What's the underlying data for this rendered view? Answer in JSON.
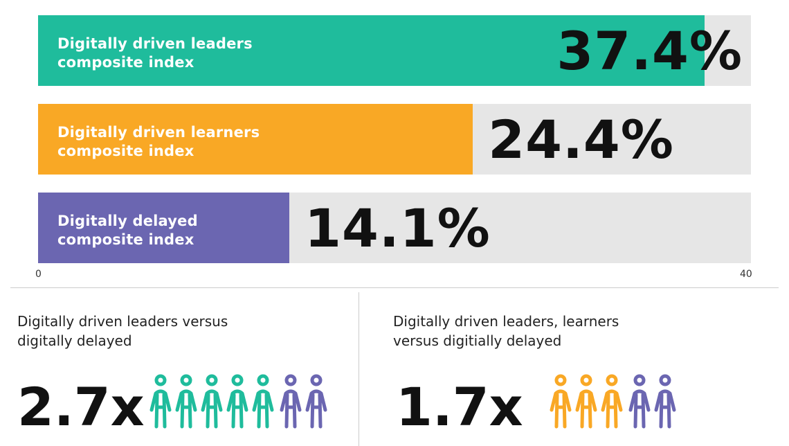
{
  "chart_data": {
    "type": "bar",
    "orientation": "horizontal",
    "categories": [
      "Digitally driven leaders composite index",
      "Digitally driven learners composite index",
      "Digitally delayed composite index"
    ],
    "values": [
      37.4,
      24.4,
      14.1
    ],
    "value_labels": [
      "37.4%",
      "24.4%",
      "14.1%"
    ],
    "label_lines": [
      [
        "Digitally driven leaders",
        "composite index"
      ],
      [
        "Digitally driven learners",
        "composite index"
      ],
      [
        "Digitally delayed",
        "composite index"
      ]
    ],
    "colors": [
      "#1fbc9c",
      "#f9a825",
      "#6b66b1"
    ],
    "xlim": [
      0,
      40
    ],
    "x_ticks": [
      "0",
      "40"
    ],
    "grid": false,
    "legend": "none"
  },
  "comparisons": [
    {
      "heading_lines": [
        "Digitally driven leaders versus",
        "digitally delayed"
      ],
      "value": "2.7x",
      "figures": [
        {
          "color": "#1fbc9c",
          "count": 5
        },
        {
          "color": "#6b66b1",
          "count": 2
        }
      ]
    },
    {
      "heading_lines": [
        "Digitally driven leaders, learners",
        "versus digitially delayed"
      ],
      "value": "1.7x",
      "figures": [
        {
          "color": "#f9a825",
          "count": 3
        },
        {
          "color": "#6b66b1",
          "count": 2
        }
      ]
    }
  ]
}
